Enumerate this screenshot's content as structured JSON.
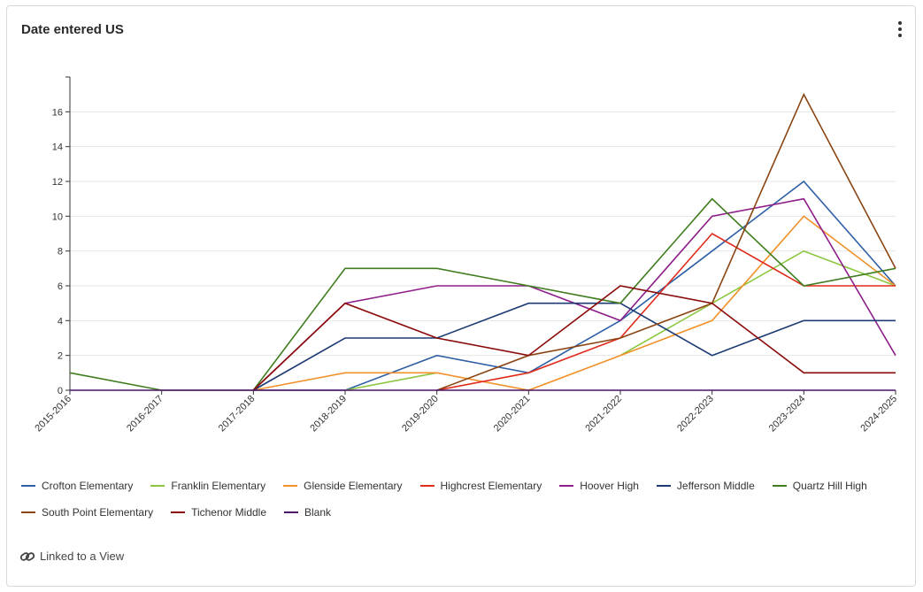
{
  "card": {
    "title": "Date entered US",
    "menu_icon": "kebab-menu-icon",
    "footer": {
      "link_icon": "link-icon",
      "link_label": "Linked to a View"
    }
  },
  "chart_data": {
    "type": "line",
    "title": "Date entered US",
    "xlabel": "",
    "ylabel": "",
    "categories": [
      "2015-2016",
      "2016-2017",
      "2017-2018",
      "2018-2019",
      "2019-2020",
      "2020-2021",
      "2021-2022",
      "2022-2023",
      "2023-2024",
      "2024-2025"
    ],
    "ylim": [
      0,
      18
    ],
    "yticks": [
      0,
      2,
      4,
      6,
      8,
      10,
      12,
      14,
      16
    ],
    "grid": true,
    "legend_position": "bottom",
    "series": [
      {
        "name": "Crofton Elementary",
        "color": "#2f5fa6",
        "values": [
          null,
          null,
          0,
          0,
          2,
          1,
          4,
          8,
          12,
          6
        ]
      },
      {
        "name": "Franklin Elementary",
        "color": "#8cc63f",
        "values": [
          null,
          null,
          null,
          0,
          1,
          null,
          2,
          5,
          8,
          6
        ]
      },
      {
        "name": "Glenside Elementary",
        "color": "#f0912b",
        "values": [
          null,
          null,
          0,
          1,
          1,
          0,
          2,
          4,
          10,
          6
        ]
      },
      {
        "name": "Highcrest Elementary",
        "color": "#e02a1b",
        "values": [
          null,
          null,
          null,
          null,
          0,
          1,
          3,
          9,
          6,
          6
        ]
      },
      {
        "name": "Hoover High",
        "color": "#8e1f8a",
        "values": [
          null,
          null,
          0,
          5,
          6,
          6,
          4,
          10,
          11,
          2
        ]
      },
      {
        "name": "Jefferson Middle",
        "color": "#1c3b73",
        "values": [
          null,
          null,
          0,
          3,
          3,
          5,
          5,
          2,
          4,
          4
        ]
      },
      {
        "name": "Quartz Hill High",
        "color": "#3f7d1e",
        "values": [
          1,
          0,
          0,
          7,
          7,
          6,
          5,
          11,
          6,
          7
        ]
      },
      {
        "name": "South Point Elementary",
        "color": "#8b4513",
        "values": [
          null,
          null,
          null,
          null,
          0,
          2,
          3,
          5,
          17,
          7
        ]
      },
      {
        "name": "Tichenor Middle",
        "color": "#8b0a0a",
        "values": [
          null,
          null,
          0,
          5,
          3,
          2,
          6,
          5,
          1,
          1
        ]
      },
      {
        "name": "Blank",
        "color": "#4b1268",
        "values": [
          0,
          0,
          0,
          0,
          0,
          0,
          0,
          0,
          0,
          0
        ]
      }
    ]
  }
}
